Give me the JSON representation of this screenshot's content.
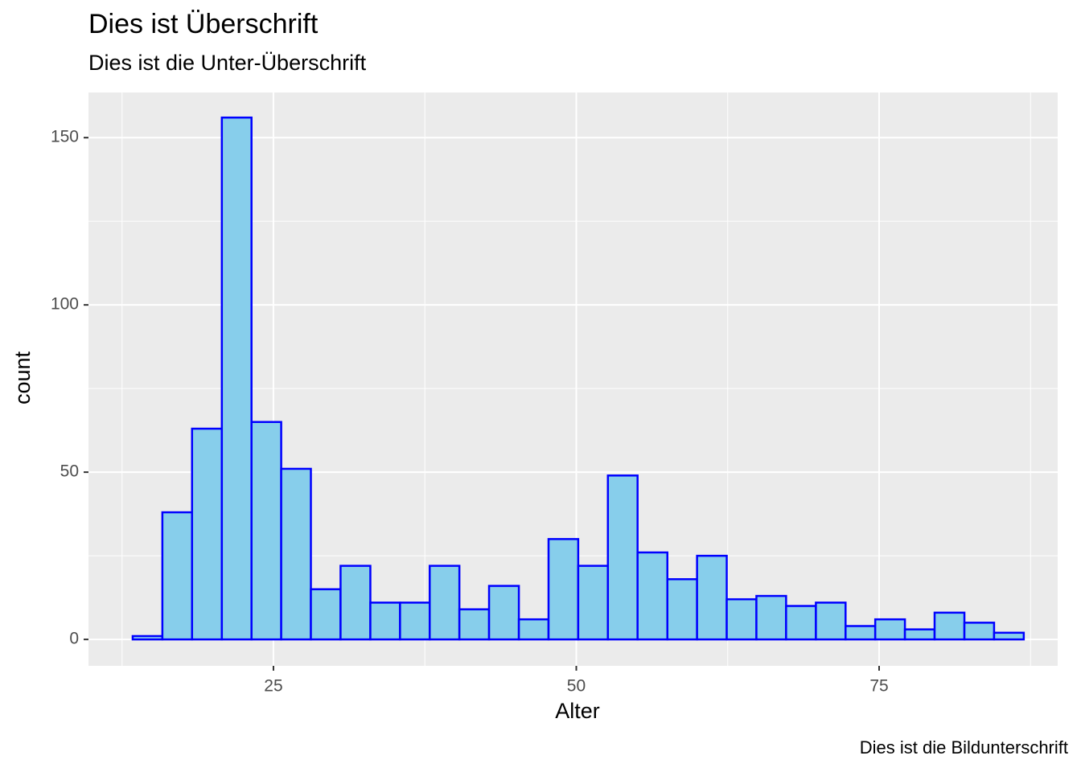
{
  "chart_data": {
    "type": "histogram",
    "title": "Dies ist Überschrift",
    "subtitle": "Dies ist die Unter-Überschrift",
    "caption": "Dies ist die Bildunterschrift",
    "x_label": "Alter",
    "y_label": "count",
    "bins": [
      13.38,
      15.83,
      18.28,
      20.74,
      23.19,
      25.64,
      28.09,
      30.54,
      33.0,
      35.45,
      37.9,
      40.35,
      42.8,
      45.26,
      47.71,
      50.16,
      52.61,
      55.06,
      57.52,
      59.97,
      62.42,
      64.87,
      67.32,
      69.78,
      72.23,
      74.68,
      77.13,
      79.58,
      82.04,
      84.49,
      86.94
    ],
    "values": [
      1,
      38,
      63,
      156,
      65,
      51,
      15,
      22,
      11,
      11,
      22,
      9,
      16,
      6,
      30,
      22,
      49,
      26,
      18,
      25,
      12,
      13,
      10,
      11,
      4,
      6,
      3,
      8,
      5,
      2
    ],
    "color": "#87CEEB",
    "edge_color": "#0000FF",
    "xlim": [
      9.73,
      89.74
    ],
    "ylim": [
      -7.9,
      163.5
    ],
    "xticks": [
      25,
      50,
      75
    ],
    "yticks": [
      0,
      50,
      100,
      150
    ],
    "x_minor_grid": [
      12.5,
      37.5,
      62.5,
      87.5
    ],
    "y_minor_grid": [
      25,
      75,
      125
    ],
    "grid": true
  }
}
